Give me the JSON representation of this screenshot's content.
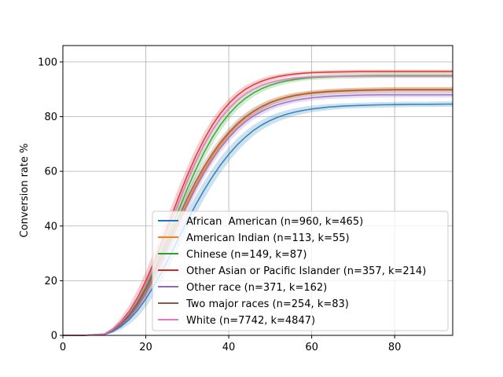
{
  "chart_data": {
    "type": "line",
    "title": "",
    "xlabel": "",
    "ylabel": "Conversion rate %",
    "xlim": [
      0,
      94
    ],
    "ylim": [
      0,
      106
    ],
    "xticks": [
      0,
      20,
      40,
      60,
      80
    ],
    "yticks": [
      0,
      20,
      40,
      60,
      80,
      100
    ],
    "grid": true,
    "legend_position": "lower-right",
    "x": [
      0,
      5,
      10,
      12,
      14,
      16,
      18,
      20,
      22,
      24,
      26,
      28,
      30,
      32,
      34,
      36,
      38,
      40,
      42,
      44,
      46,
      48,
      50,
      52,
      54,
      56,
      58,
      60,
      64,
      68,
      72,
      76,
      80,
      84,
      88,
      94
    ],
    "series": [
      {
        "name": "African  American (n=960, k=465)",
        "color": "#1f77b4",
        "values": [
          0,
          0,
          0.3,
          1.4,
          3.2,
          5.8,
          9.1,
          13.3,
          18.2,
          23.7,
          29.6,
          35.8,
          41.9,
          47.7,
          53.0,
          57.9,
          62.3,
          66.2,
          69.6,
          72.5,
          75.0,
          77.0,
          78.6,
          79.9,
          80.9,
          81.7,
          82.3,
          82.8,
          83.5,
          83.9,
          84.1,
          84.3,
          84.4,
          84.5,
          84.5,
          84.6
        ],
        "band": [
          0,
          0,
          0.2,
          0.6,
          1.2,
          1.8,
          2.4,
          3.0,
          3.4,
          3.6,
          3.7,
          3.7,
          3.6,
          3.4,
          3.2,
          3.0,
          2.8,
          2.6,
          2.4,
          2.2,
          2.0,
          1.8,
          1.7,
          1.6,
          1.5,
          1.4,
          1.3,
          1.2,
          1.1,
          1.0,
          1.0,
          1.0,
          1.0,
          1.0,
          1.0,
          1.0
        ]
      },
      {
        "name": "American Indian (n=113, k=55)",
        "color": "#ff7f0e",
        "values": [
          0,
          0,
          0.4,
          1.8,
          4.0,
          7.0,
          11.0,
          16.0,
          21.9,
          28.4,
          35.2,
          42.0,
          48.6,
          54.8,
          60.4,
          65.4,
          69.8,
          73.6,
          76.9,
          79.6,
          81.9,
          83.7,
          85.2,
          86.3,
          87.2,
          87.9,
          88.4,
          88.8,
          89.3,
          89.6,
          89.8,
          89.9,
          90.0,
          90.0,
          90.0,
          90.0
        ],
        "band": [
          0,
          0,
          0.2,
          0.5,
          0.9,
          1.3,
          1.7,
          2.0,
          2.2,
          2.3,
          2.3,
          2.2,
          2.1,
          2.0,
          1.9,
          1.8,
          1.7,
          1.6,
          1.5,
          1.4,
          1.3,
          1.2,
          1.1,
          1.0,
          0.9,
          0.9,
          0.8,
          0.8,
          0.8,
          0.8,
          0.8,
          0.8,
          0.8,
          0.8,
          0.8,
          0.8
        ]
      },
      {
        "name": "Chinese (n=149, k=87)",
        "color": "#2ca02c",
        "values": [
          0,
          0,
          0.4,
          1.9,
          4.3,
          7.6,
          12.0,
          17.5,
          23.9,
          31.0,
          38.5,
          46.2,
          53.6,
          60.5,
          66.8,
          72.3,
          77.0,
          80.9,
          84.1,
          86.7,
          88.7,
          90.3,
          91.5,
          92.4,
          93.1,
          93.6,
          94.0,
          94.3,
          94.6,
          94.8,
          94.9,
          95.0,
          95.0,
          95.0,
          95.0,
          95.0
        ],
        "band": [
          0,
          0,
          0.2,
          0.5,
          1.0,
          1.5,
          2.0,
          2.4,
          2.8,
          3.0,
          3.1,
          3.1,
          3.0,
          2.8,
          2.6,
          2.4,
          2.2,
          2.0,
          1.8,
          1.6,
          1.4,
          1.3,
          1.2,
          1.1,
          1.0,
          1.0,
          0.9,
          0.9,
          0.9,
          0.9,
          0.9,
          0.9,
          0.9,
          0.9,
          0.9,
          0.9
        ]
      },
      {
        "name": "Other Asian or Pacific Islander (n=357, k=214)",
        "color": "#d62728",
        "values": [
          0,
          0,
          0.5,
          2.2,
          5.0,
          8.8,
          13.8,
          19.9,
          27.0,
          34.8,
          42.9,
          50.9,
          58.5,
          65.4,
          71.5,
          76.8,
          81.2,
          84.8,
          87.7,
          90.0,
          91.7,
          93.0,
          94.0,
          94.7,
          95.2,
          95.6,
          95.9,
          96.1,
          96.3,
          96.4,
          96.5,
          96.5,
          96.5,
          96.5,
          96.5,
          96.5
        ],
        "band": [
          0,
          0,
          0.3,
          0.8,
          1.5,
          2.2,
          2.9,
          3.4,
          3.7,
          3.8,
          3.7,
          3.5,
          3.2,
          2.9,
          2.6,
          2.3,
          2.0,
          1.8,
          1.6,
          1.4,
          1.2,
          1.1,
          1.0,
          0.9,
          0.8,
          0.8,
          0.7,
          0.7,
          0.7,
          0.7,
          0.7,
          0.7,
          0.7,
          0.7,
          0.7,
          0.7
        ]
      },
      {
        "name": "Other race (n=371, k=162)",
        "color": "#9467bd",
        "values": [
          0,
          0,
          0.4,
          1.7,
          3.8,
          6.7,
          10.6,
          15.5,
          21.3,
          27.7,
          34.4,
          41.2,
          47.8,
          53.9,
          59.4,
          64.3,
          68.6,
          72.3,
          75.5,
          78.1,
          80.3,
          82.0,
          83.4,
          84.5,
          85.3,
          86.0,
          86.5,
          86.9,
          87.4,
          87.7,
          87.9,
          88.0,
          88.0,
          88.0,
          88.0,
          88.0
        ],
        "band": [
          0,
          0,
          0.2,
          0.5,
          0.9,
          1.4,
          1.8,
          2.2,
          2.5,
          2.6,
          2.6,
          2.5,
          2.4,
          2.2,
          2.0,
          1.9,
          1.8,
          1.7,
          1.6,
          1.5,
          1.4,
          1.3,
          1.2,
          1.1,
          1.1,
          1.0,
          1.0,
          1.0,
          1.0,
          1.0,
          1.0,
          1.0,
          1.0,
          1.0,
          1.0,
          1.0
        ]
      },
      {
        "name": "Two major races (n=254, k=83)",
        "color": "#8c564b",
        "values": [
          0,
          0,
          0.4,
          1.8,
          4.1,
          7.3,
          11.5,
          16.8,
          22.9,
          29.6,
          36.6,
          43.5,
          50.1,
          56.2,
          61.6,
          66.4,
          70.6,
          74.2,
          77.3,
          79.9,
          82.0,
          83.7,
          85.1,
          86.2,
          87.0,
          87.7,
          88.2,
          88.6,
          89.1,
          89.4,
          89.6,
          89.7,
          89.8,
          89.8,
          89.8,
          89.8
        ],
        "band": [
          0,
          0,
          0.2,
          0.5,
          1.0,
          1.5,
          2.0,
          2.4,
          2.7,
          2.8,
          2.8,
          2.7,
          2.5,
          2.3,
          2.1,
          1.9,
          1.8,
          1.7,
          1.6,
          1.5,
          1.4,
          1.3,
          1.2,
          1.1,
          1.1,
          1.0,
          1.0,
          1.0,
          1.0,
          1.0,
          1.0,
          1.0,
          1.0,
          1.0,
          1.0,
          1.0
        ]
      },
      {
        "name": "White (n=7742, k=4847)",
        "color": "#e377c2",
        "values": [
          0,
          0,
          0.5,
          2.1,
          4.7,
          8.3,
          13.1,
          18.9,
          25.7,
          33.2,
          41.1,
          49.0,
          56.6,
          63.5,
          69.6,
          74.9,
          79.3,
          82.9,
          85.9,
          88.3,
          90.1,
          91.5,
          92.5,
          93.2,
          93.7,
          94.1,
          94.3,
          94.5,
          94.7,
          94.8,
          94.8,
          94.8,
          94.8,
          94.8,
          94.8,
          94.8
        ],
        "band": [
          0,
          0,
          0.1,
          0.3,
          0.5,
          0.7,
          0.9,
          1.0,
          1.0,
          1.0,
          1.0,
          0.9,
          0.9,
          0.8,
          0.8,
          0.7,
          0.7,
          0.6,
          0.6,
          0.5,
          0.5,
          0.5,
          0.5,
          0.5,
          0.5,
          0.5,
          0.5,
          0.5,
          0.5,
          0.5,
          0.5,
          0.5,
          0.5,
          0.5,
          0.5,
          0.5
        ]
      }
    ]
  }
}
